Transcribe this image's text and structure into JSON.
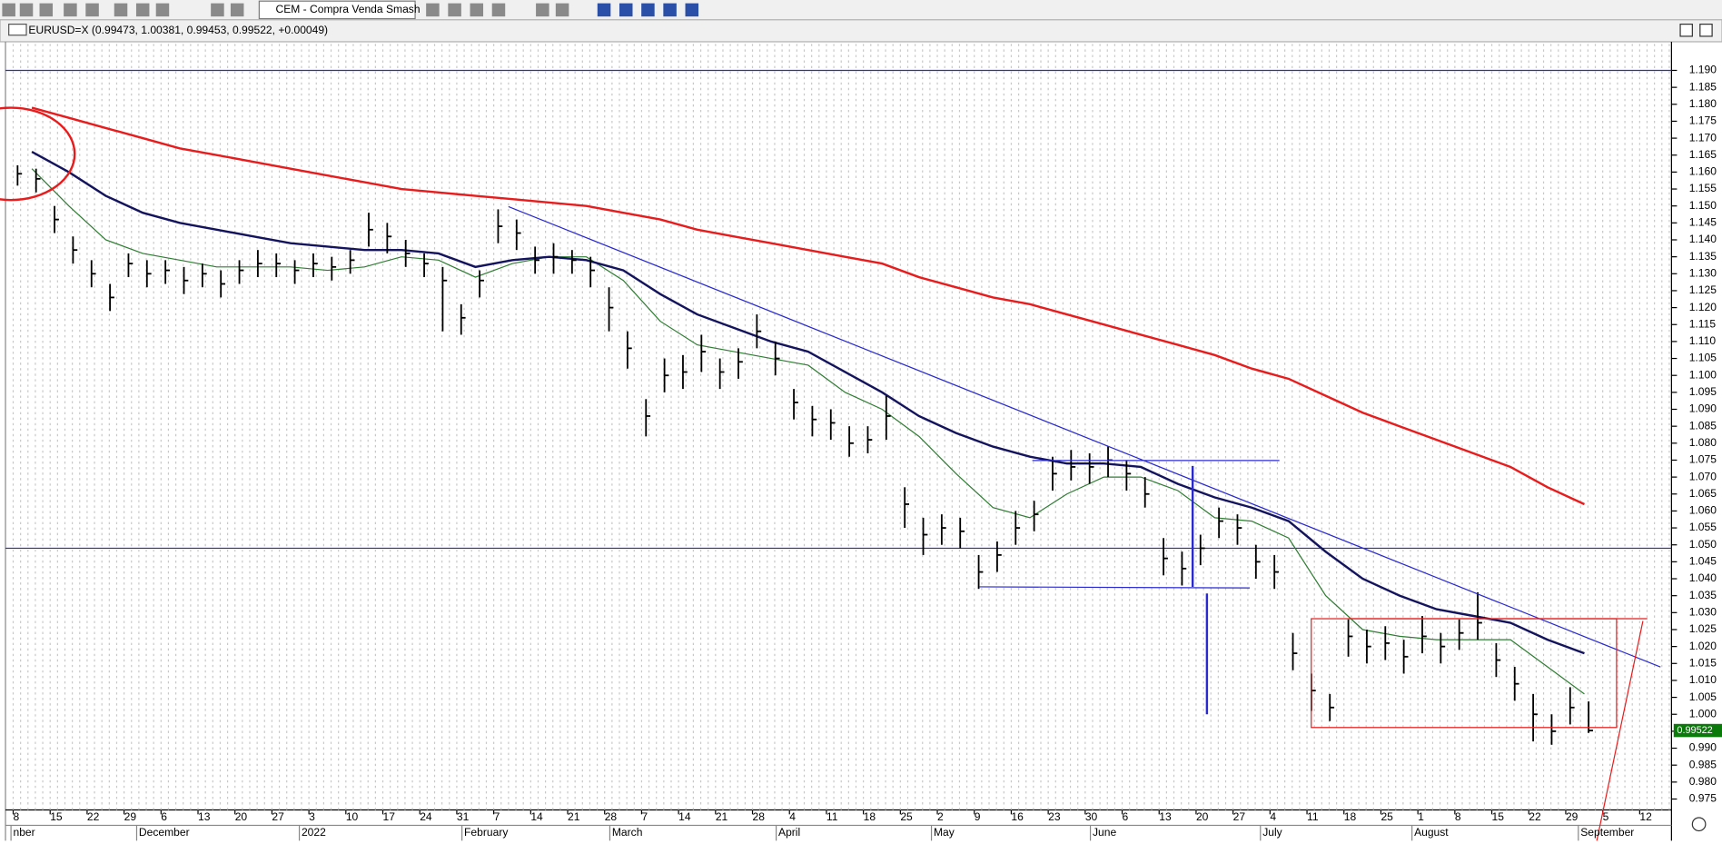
{
  "toolbar": {
    "indicator_select": "CEM - Compra Venda Smash"
  },
  "chart_data": {
    "type": "ohlc",
    "title": "EURUSD=X (0.99473, 1.00381, 0.99453, 0.99522, +0.00049)",
    "last_price": 0.99522,
    "x_tick_labels": [
      "8",
      "15",
      "22",
      "29",
      "6",
      "13",
      "20",
      "27",
      "3",
      "10",
      "17",
      "24",
      "31",
      "7",
      "14",
      "21",
      "28",
      "7",
      "14",
      "21",
      "28",
      "4",
      "11",
      "18",
      "25",
      "2",
      "9",
      "16",
      "23",
      "30",
      "6",
      "13",
      "20",
      "27",
      "4",
      "11",
      "18",
      "25",
      "1",
      "8",
      "15",
      "22",
      "29",
      "5",
      "12"
    ],
    "months": [
      "nber",
      "December",
      "2022",
      "February",
      "March",
      "April",
      "May",
      "June",
      "July",
      "August",
      "September"
    ],
    "ylim": [
      0.9627,
      1.1978
    ],
    "yticks": [
      0.975,
      {
        "value": 0.98,
        "label": "0.980"
      },
      0.985,
      {
        "value": 0.99,
        "label": "0.990"
      },
      0.995,
      {
        "value": 1,
        "label": "1.000"
      },
      1.005,
      {
        "value": 1.01,
        "label": "1.010"
      },
      1.015,
      {
        "value": 1.02,
        "label": "1.020"
      },
      1.025,
      {
        "value": 1.03,
        "label": "1.030"
      },
      1.035,
      {
        "value": 1.04,
        "label": "1.040"
      },
      1.045,
      {
        "value": 1.05,
        "label": "1.050"
      },
      1.055,
      {
        "value": 1.06,
        "label": "1.060"
      },
      1.065,
      {
        "value": 1.07,
        "label": "1.070"
      },
      1.075,
      {
        "value": 1.08,
        "label": "1.080"
      },
      1.085,
      {
        "value": 1.09,
        "label": "1.090"
      },
      1.095,
      {
        "value": 1.1,
        "label": "1.100"
      },
      1.105,
      {
        "value": 1.11,
        "label": "1.110"
      },
      1.115,
      {
        "value": 1.12,
        "label": "1.120"
      },
      1.125,
      {
        "value": 1.13,
        "label": "1.130"
      },
      1.135,
      {
        "value": 1.14,
        "label": "1.140"
      },
      1.145,
      {
        "value": 1.15,
        "label": "1.150"
      },
      1.155,
      {
        "value": 1.16,
        "label": "1.160"
      },
      1.165,
      {
        "value": 1.17,
        "label": "1.170"
      },
      1.175,
      {
        "value": 1.18,
        "label": "1.180"
      },
      1.185,
      {
        "value": 1.19,
        "label": "1.190"
      }
    ],
    "bar_color": "#000000",
    "close": [
      1.1595,
      1.158,
      1.146,
      1.137,
      1.13,
      1.123,
      1.133,
      1.13,
      1.131,
      1.128,
      1.13,
      1.127,
      1.131,
      1.133,
      1.133,
      1.131,
      1.133,
      1.132,
      1.134,
      1.143,
      1.141,
      1.136,
      1.133,
      1.128,
      1.117,
      1.128,
      1.144,
      1.142,
      1.134,
      1.135,
      1.134,
      1.131,
      1.12,
      1.108,
      1.088,
      1.1,
      1.101,
      1.107,
      1.101,
      1.104,
      1.113,
      1.105,
      1.092,
      1.087,
      1.086,
      1.08,
      1.081,
      1.088,
      1.062,
      1.053,
      1.055,
      1.054,
      1.042,
      1.047,
      1.055,
      1.059,
      1.071,
      1.073,
      1.073,
      1.075,
      1.071,
      1.065,
      1.046,
      1.043,
      1.049,
      1.057,
      1.055,
      1.045,
      1.042,
      1.018,
      1.007,
      1.002,
      1.023,
      1.02,
      1.021,
      1.017,
      1.023,
      1.02,
      1.024,
      1.027,
      1.016,
      1.009,
      1.0,
      0.995,
      1.002,
      0.9952
    ],
    "high": [
      1.162,
      1.161,
      1.15,
      1.141,
      1.134,
      1.127,
      1.136,
      1.134,
      1.134,
      1.132,
      1.133,
      1.131,
      1.134,
      1.137,
      1.136,
      1.134,
      1.136,
      1.135,
      1.137,
      1.148,
      1.145,
      1.14,
      1.136,
      1.132,
      1.121,
      1.131,
      1.149,
      1.146,
      1.138,
      1.139,
      1.137,
      1.135,
      1.126,
      1.113,
      1.093,
      1.105,
      1.106,
      1.112,
      1.105,
      1.108,
      1.118,
      1.11,
      1.096,
      1.091,
      1.09,
      1.085,
      1.085,
      1.094,
      1.067,
      1.058,
      1.059,
      1.058,
      1.047,
      1.051,
      1.06,
      1.063,
      1.076,
      1.078,
      1.077,
      1.079,
      1.075,
      1.07,
      1.052,
      1.048,
      1.053,
      1.061,
      1.059,
      1.05,
      1.047,
      1.024,
      1.012,
      1.006,
      1.028,
      1.025,
      1.026,
      1.022,
      1.029,
      1.024,
      1.028,
      1.036,
      1.021,
      1.014,
      1.006,
      1.0,
      1.008,
      1.0038
    ],
    "low": [
      1.156,
      1.154,
      1.142,
      1.133,
      1.126,
      1.119,
      1.129,
      1.126,
      1.127,
      1.124,
      1.126,
      1.123,
      1.127,
      1.129,
      1.129,
      1.127,
      1.129,
      1.128,
      1.13,
      1.138,
      1.136,
      1.132,
      1.129,
      1.113,
      1.112,
      1.123,
      1.139,
      1.137,
      1.13,
      1.13,
      1.13,
      1.126,
      1.113,
      1.102,
      1.082,
      1.095,
      1.096,
      1.101,
      1.096,
      1.099,
      1.108,
      1.1,
      1.087,
      1.082,
      1.081,
      1.076,
      1.077,
      1.081,
      1.055,
      1.047,
      1.05,
      1.049,
      1.037,
      1.042,
      1.05,
      1.054,
      1.066,
      1.069,
      1.068,
      1.07,
      1.066,
      1.061,
      1.041,
      1.038,
      1.044,
      1.052,
      1.05,
      1.04,
      1.037,
      1.013,
      1.001,
      0.998,
      1.017,
      1.015,
      1.016,
      1.012,
      1.018,
      1.015,
      1.019,
      1.022,
      1.011,
      1.004,
      0.992,
      0.991,
      0.997,
      0.9945
    ],
    "averages": [
      {
        "color": "#2e7d32",
        "values": [
          1.161,
          1.15,
          1.14,
          1.136,
          1.134,
          1.132,
          1.132,
          1.132,
          1.131,
          1.132,
          1.135,
          1.134,
          1.129,
          1.133,
          1.135,
          1.135,
          1.128,
          1.116,
          1.109,
          1.107,
          1.105,
          1.103,
          1.095,
          1.09,
          1.082,
          1.071,
          1.061,
          1.058,
          1.065,
          1.07,
          1.07,
          1.066,
          1.058,
          1.057,
          1.052,
          1.035,
          1.025,
          1.023,
          1.022,
          1.022,
          1.022,
          1.014,
          1.006
        ]
      },
      {
        "color": "#14145e",
        "values": [
          1.166,
          1.16,
          1.153,
          1.148,
          1.145,
          1.143,
          1.141,
          1.139,
          1.138,
          1.137,
          1.137,
          1.136,
          1.132,
          1.134,
          1.135,
          1.134,
          1.131,
          1.124,
          1.118,
          1.114,
          1.11,
          1.107,
          1.101,
          1.095,
          1.088,
          1.083,
          1.079,
          1.076,
          1.074,
          1.074,
          1.073,
          1.068,
          1.064,
          1.061,
          1.057,
          1.048,
          1.04,
          1.035,
          1.031,
          1.029,
          1.027,
          1.022,
          1.018
        ]
      },
      {
        "color": "#e81c1c",
        "values": [
          1.179,
          1.176,
          1.173,
          1.17,
          1.167,
          1.165,
          1.163,
          1.161,
          1.159,
          1.157,
          1.155,
          1.154,
          1.153,
          1.152,
          1.151,
          1.15,
          1.148,
          1.146,
          1.143,
          1.141,
          1.139,
          1.137,
          1.135,
          1.133,
          1.129,
          1.126,
          1.123,
          1.121,
          1.118,
          1.115,
          1.112,
          1.109,
          1.106,
          1.102,
          1.099,
          1.094,
          1.089,
          1.085,
          1.081,
          1.077,
          1.073,
          1.067,
          1.062
        ]
      }
    ],
    "hlines": [
      1.19,
      1.049
    ],
    "hline_color": "#2a2ad0"
  }
}
